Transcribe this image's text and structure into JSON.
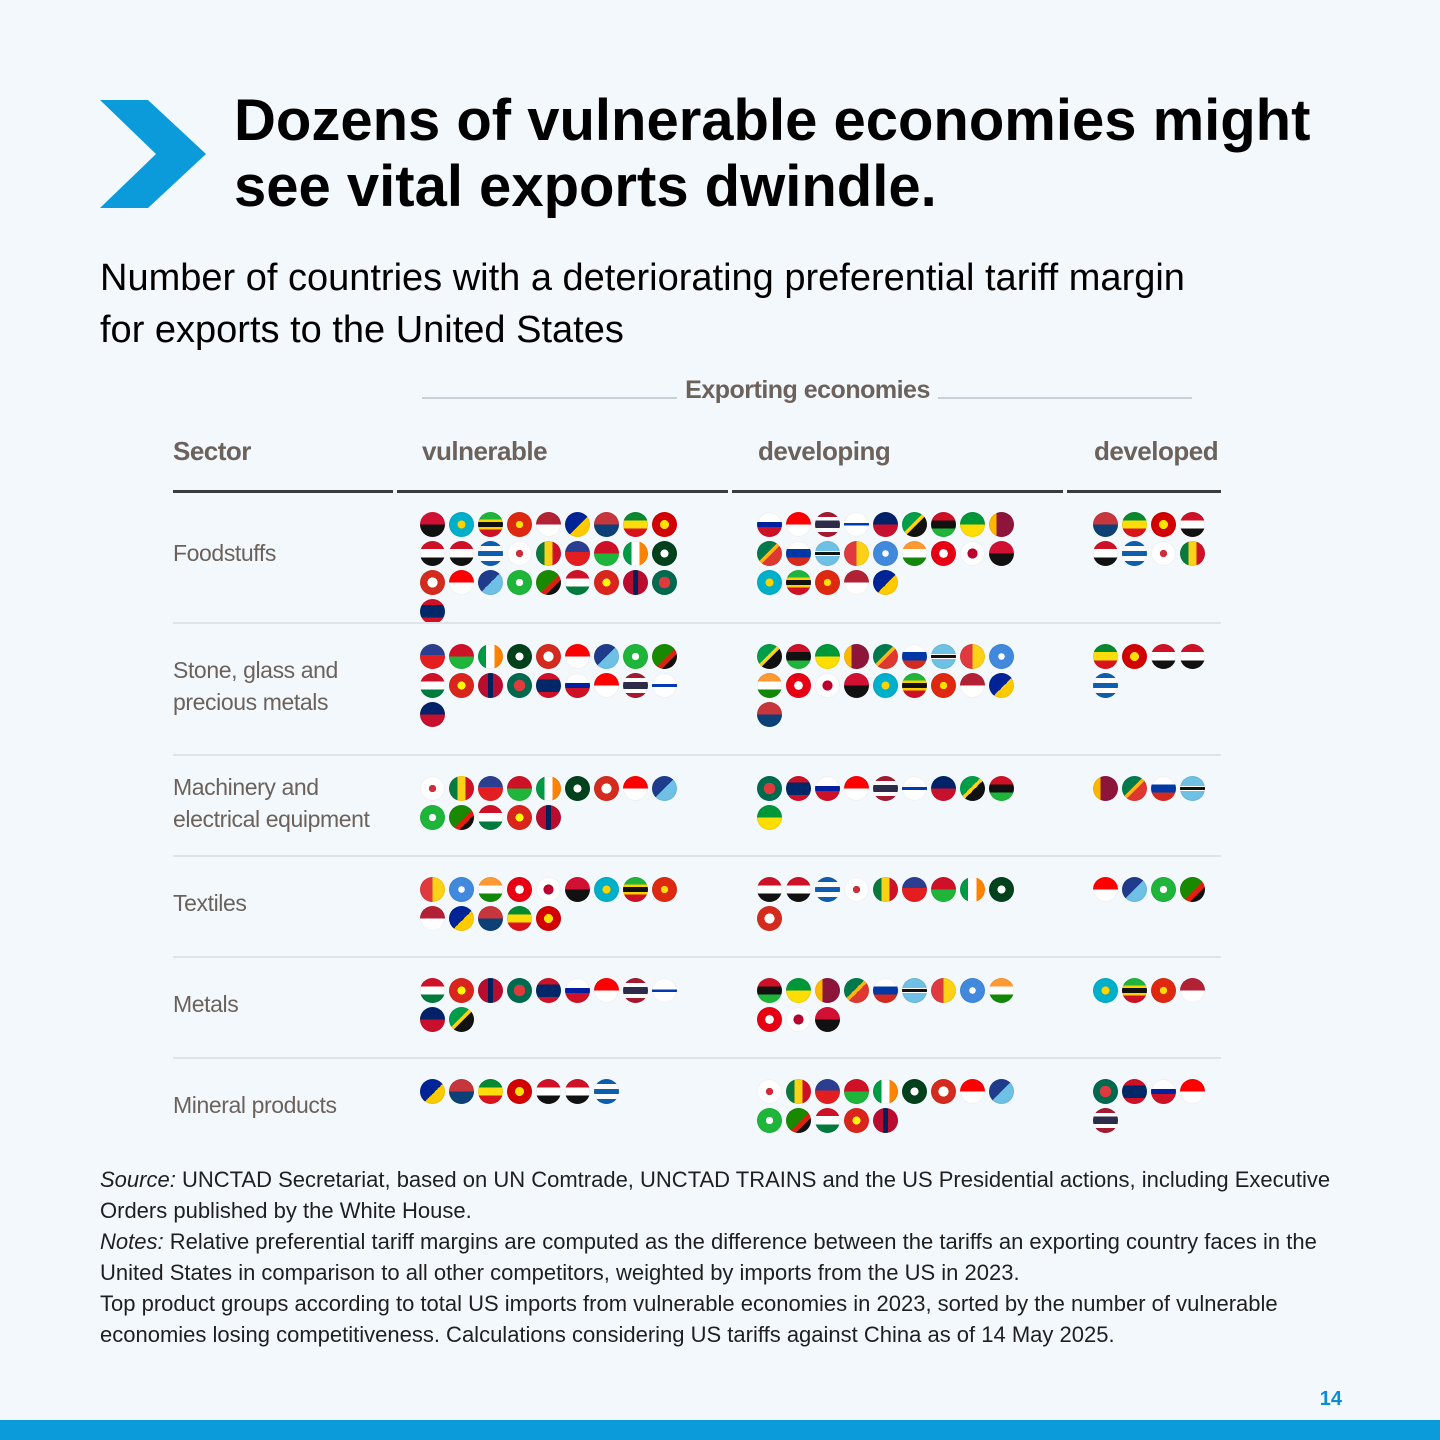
{
  "title": "Dozens of vulnerable economies might see vital exports dwindle.",
  "subtitle": "Number of countries with a deteriorating preferential tariff margin for exports to the United States",
  "table": {
    "group_header": "Exporting economies",
    "columns": {
      "sector": "Sector",
      "vulnerable": "vulnerable",
      "developing": "developing",
      "developed": "developed"
    },
    "rows": [
      {
        "sector": "Foodstuffs",
        "counts": {
          "vulnerable": 28,
          "developing": 23,
          "developed": 8
        }
      },
      {
        "sector": "Stone, glass and precious metals",
        "counts": {
          "vulnerable": 19,
          "developing": 19,
          "developed": 5
        }
      },
      {
        "sector": "Machinery and electrical equipment",
        "counts": {
          "vulnerable": 14,
          "developing": 10,
          "developed": 4
        }
      },
      {
        "sector": "Textiles",
        "counts": {
          "vulnerable": 14,
          "developing": 10,
          "developed": 4
        }
      },
      {
        "sector": "Metals",
        "counts": {
          "vulnerable": 11,
          "developing": 12,
          "developed": 4
        }
      },
      {
        "sector": "Mineral products",
        "counts": {
          "vulnerable": 7,
          "developing": 14,
          "developed": 5
        }
      }
    ]
  },
  "notes": {
    "source_label": "Source:",
    "source_text": " UNCTAD Secretariat, based on UN Comtrade, UNCTAD TRAINS and the US Presidential actions, including Executive Orders published by the White House.",
    "notes_label": "Notes:",
    "notes_text": " Relative preferential tariff margins are computed as the difference between the tariffs an exporting country faces in the United States in comparison to all other competitors, weighted by imports from the US in 2023.",
    "extra_text": "Top product groups according to total US imports from vulnerable economies in 2023, sorted by the number of vulnerable economies losing competitiveness. Calculations considering US tariffs against China as of 14 May 2025."
  },
  "page_number": "14",
  "colors": {
    "accent": "#0b9bdb",
    "header_text": "#6b625c"
  }
}
